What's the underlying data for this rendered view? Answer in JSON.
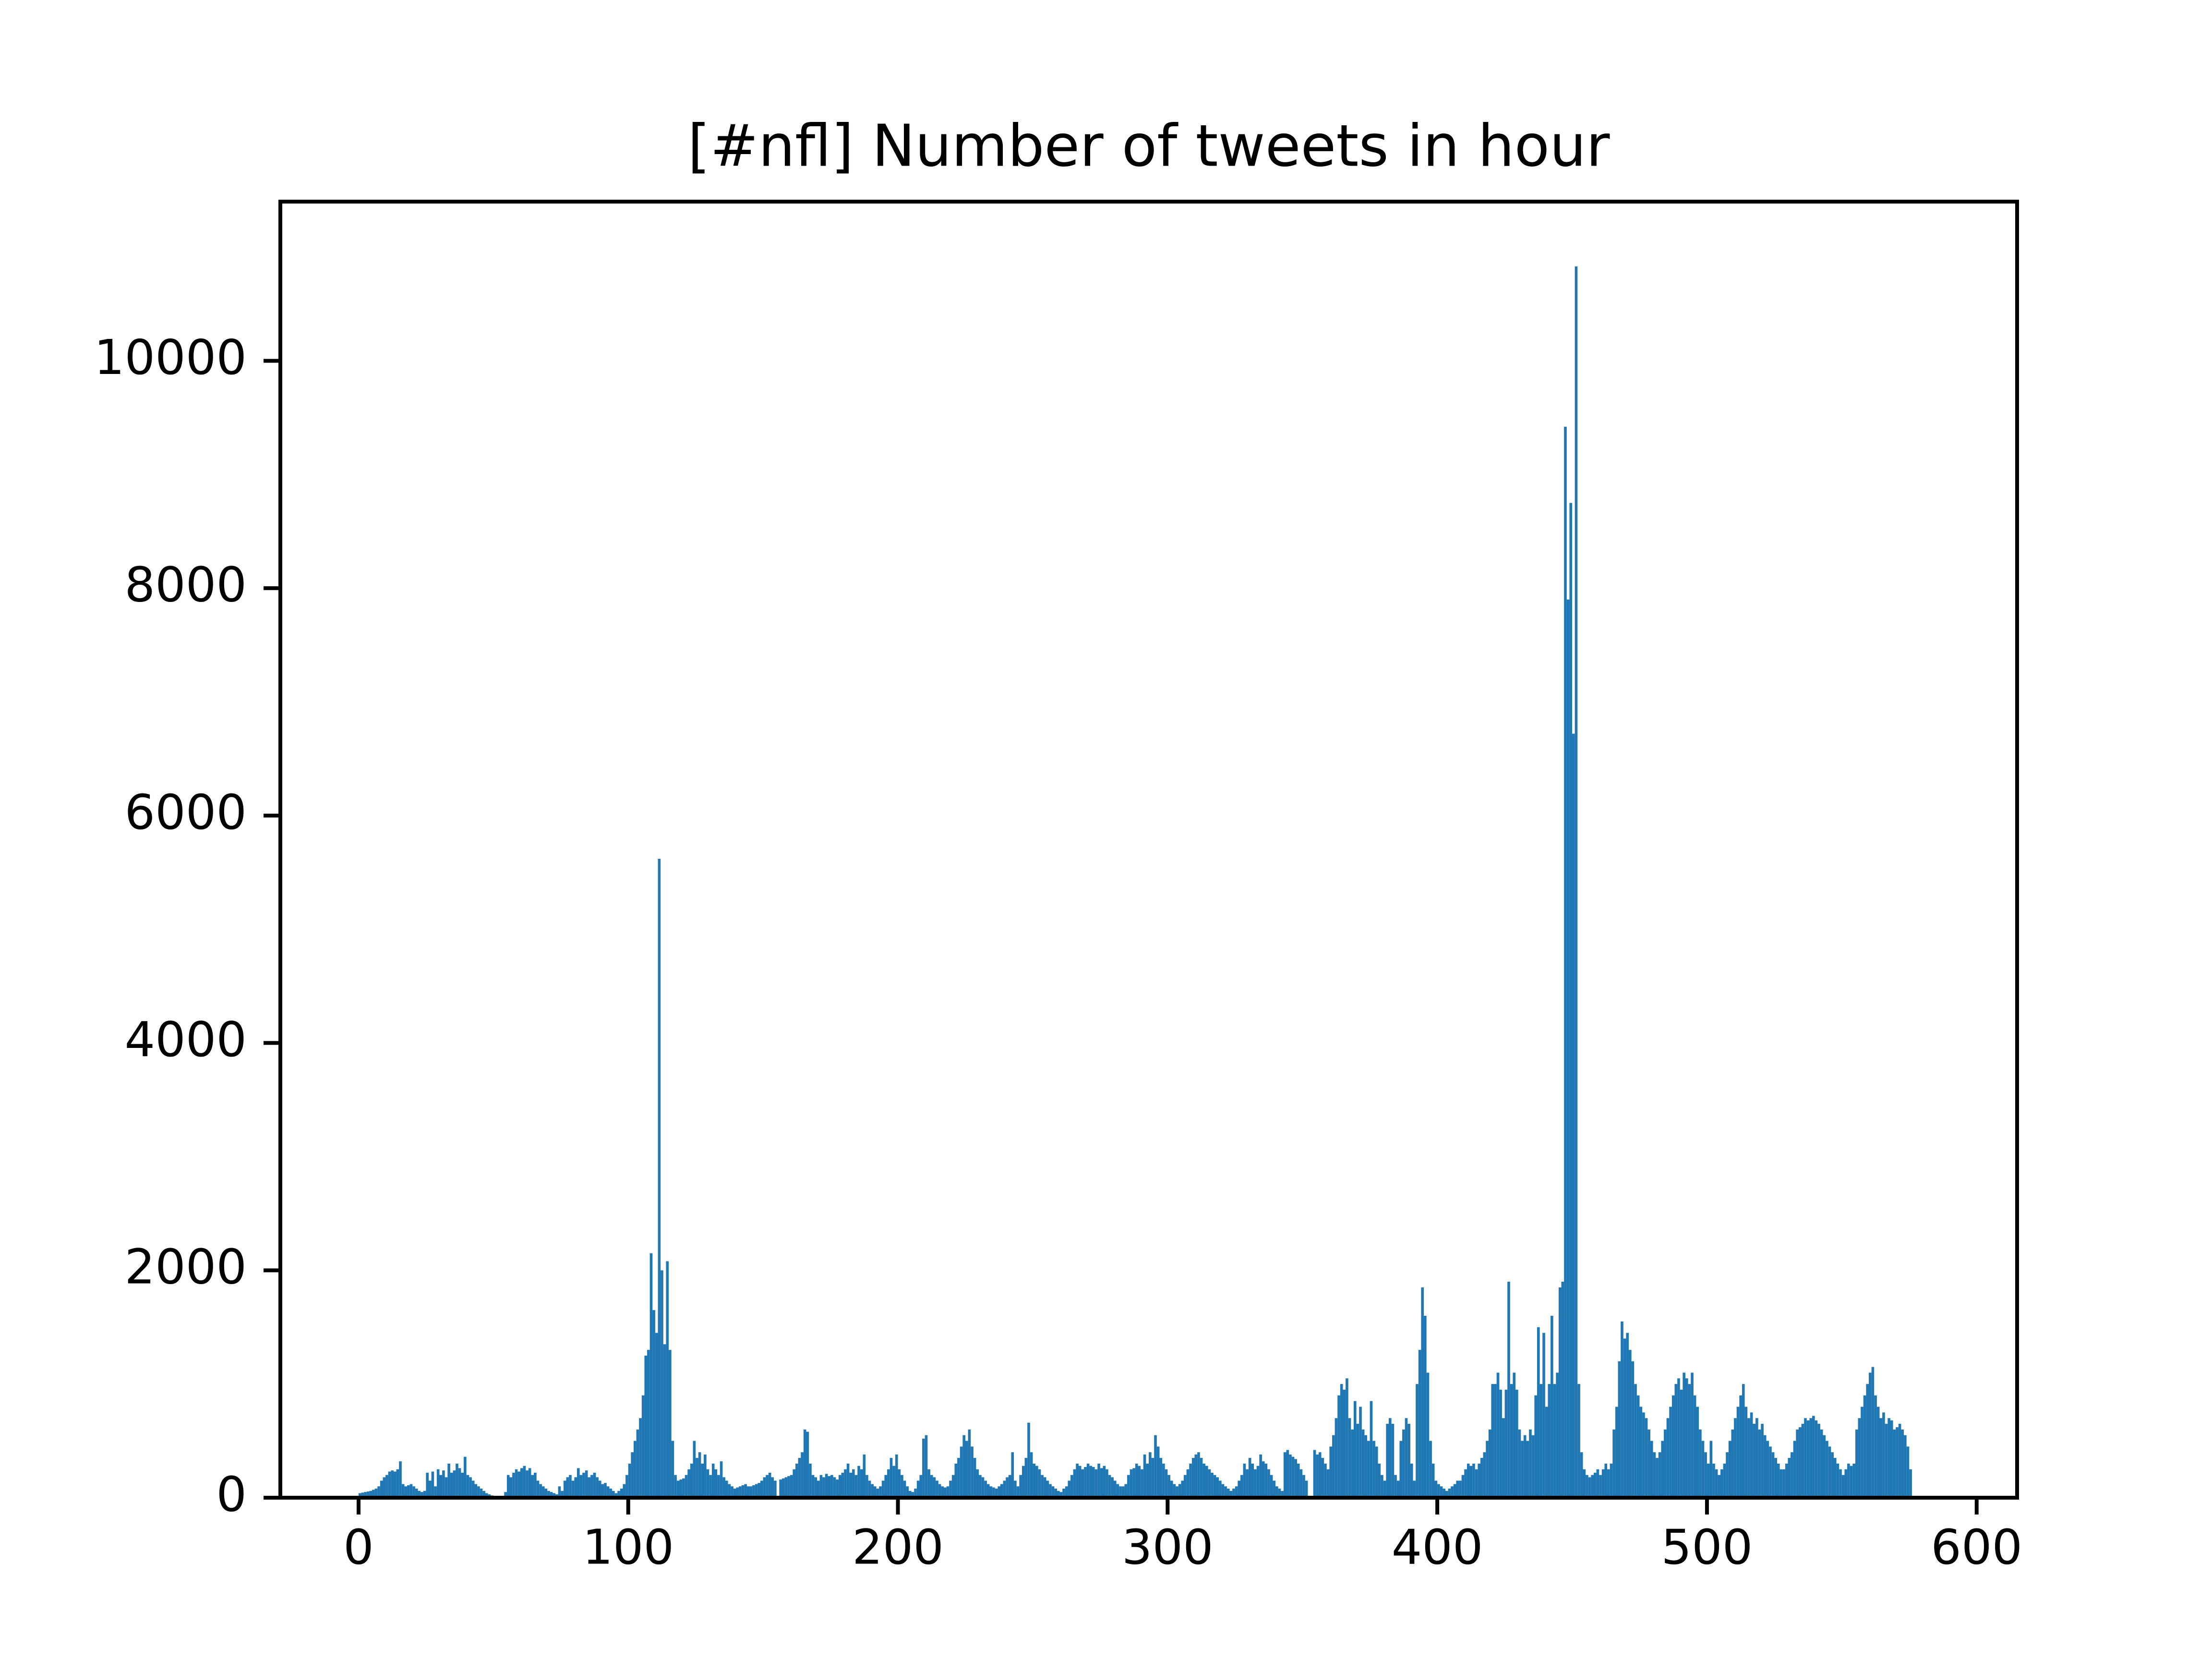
{
  "chart_data": {
    "type": "histogram",
    "title": "[#nfl] Number of tweets in hour",
    "color": "#1f77b4",
    "bins": [
      0,
      1,
      2,
      3,
      4,
      5,
      6,
      7,
      8,
      9,
      10,
      11,
      12,
      13,
      14,
      15,
      16,
      17,
      18,
      19,
      20,
      21,
      22,
      23,
      24,
      25,
      26,
      27,
      28,
      29,
      30,
      31,
      32,
      33,
      34,
      35,
      36,
      37,
      38,
      39,
      40,
      41,
      42,
      43,
      44,
      45,
      46,
      47,
      48,
      49,
      50,
      51,
      52,
      53,
      54,
      55,
      56,
      57,
      58,
      59,
      60,
      61,
      62,
      63,
      64,
      65,
      66,
      67,
      68,
      69,
      70,
      71,
      72,
      73,
      74,
      75,
      76,
      77,
      78,
      79,
      80,
      81,
      82,
      83,
      84,
      85,
      86,
      87,
      88,
      89,
      90,
      91,
      92,
      93,
      94,
      95,
      96,
      97,
      98,
      99,
      100,
      101,
      102,
      103,
      104,
      105,
      106,
      107,
      108,
      109,
      110,
      111,
      112,
      113,
      114,
      115,
      116,
      117,
      118,
      119,
      120,
      121,
      122,
      123,
      124,
      125,
      126,
      127,
      128,
      129,
      130,
      131,
      132,
      133,
      134,
      135,
      136,
      137,
      138,
      139,
      140,
      141,
      142,
      143,
      144,
      145,
      146,
      147,
      148,
      149,
      150,
      151,
      152,
      153,
      154,
      155,
      156,
      157,
      158,
      159,
      160,
      161,
      162,
      163,
      164,
      165,
      166,
      167,
      168,
      169,
      170,
      171,
      172,
      173,
      174,
      175,
      176,
      177,
      178,
      179,
      180,
      181,
      182,
      183,
      184,
      185,
      186,
      187,
      188,
      189,
      190,
      191,
      192,
      193,
      194,
      195,
      196,
      197,
      198,
      199,
      200,
      201,
      202,
      203,
      204,
      205,
      206,
      207,
      208,
      209,
      210,
      211,
      212,
      213,
      214,
      215,
      216,
      217,
      218,
      219,
      220,
      221,
      222,
      223,
      224,
      225,
      226,
      227,
      228,
      229,
      230,
      231,
      232,
      233,
      234,
      235,
      236,
      237,
      238,
      239,
      240,
      241,
      242,
      243,
      244,
      245,
      246,
      247,
      248,
      249,
      250,
      251,
      252,
      253,
      254,
      255,
      256,
      257,
      258,
      259,
      260,
      261,
      262,
      263,
      264,
      265,
      266,
      267,
      268,
      269,
      270,
      271,
      272,
      273,
      274,
      275,
      276,
      277,
      278,
      279,
      280,
      281,
      282,
      283,
      284,
      285,
      286,
      287,
      288,
      289,
      290,
      291,
      292,
      293,
      294,
      295,
      296,
      297,
      298,
      299,
      300,
      301,
      302,
      303,
      304,
      305,
      306,
      307,
      308,
      309,
      310,
      311,
      312,
      313,
      314,
      315,
      316,
      317,
      318,
      319,
      320,
      321,
      322,
      323,
      324,
      325,
      326,
      327,
      328,
      329,
      330,
      331,
      332,
      333,
      334,
      335,
      336,
      337,
      338,
      339,
      340,
      341,
      342,
      343,
      344,
      345,
      346,
      347,
      348,
      349,
      350,
      351,
      352,
      353,
      354,
      355,
      356,
      357,
      358,
      359,
      360,
      361,
      362,
      363,
      364,
      365,
      366,
      367,
      368,
      369,
      370,
      371,
      372,
      373,
      374,
      375,
      376,
      377,
      378,
      379,
      380,
      381,
      382,
      383,
      384,
      385,
      386,
      387,
      388,
      389,
      390,
      391,
      392,
      393,
      394,
      395,
      396,
      397,
      398,
      399,
      400,
      401,
      402,
      403,
      404,
      405,
      406,
      407,
      408,
      409,
      410,
      411,
      412,
      413,
      414,
      415,
      416,
      417,
      418,
      419,
      420,
      421,
      422,
      423,
      424,
      425,
      426,
      427,
      428,
      429,
      430,
      431,
      432,
      433,
      434,
      435,
      436,
      437,
      438,
      439,
      440,
      441,
      442,
      443,
      444,
      445,
      446,
      447,
      448,
      449,
      450,
      451,
      452,
      453,
      454,
      455,
      456,
      457,
      458,
      459,
      460,
      461,
      462,
      463,
      464,
      465,
      466,
      467,
      468,
      469,
      470,
      471,
      472,
      473,
      474,
      475,
      476,
      477,
      478,
      479,
      480,
      481,
      482,
      483,
      484,
      485,
      486,
      487,
      488,
      489,
      490,
      491,
      492,
      493,
      494,
      495,
      496,
      497,
      498,
      499,
      500,
      501,
      502,
      503,
      504,
      505,
      506,
      507,
      508,
      509,
      510,
      511,
      512,
      513,
      514,
      515,
      516,
      517,
      518,
      519,
      520,
      521,
      522,
      523,
      524,
      525,
      526,
      527,
      528,
      529,
      530,
      531,
      532,
      533,
      534,
      535,
      536,
      537,
      538,
      539,
      540,
      541,
      542,
      543,
      544,
      545,
      546,
      547,
      548,
      549,
      550,
      551,
      552,
      553,
      554,
      555,
      556,
      557,
      558,
      559,
      560,
      561,
      562,
      563,
      564,
      565,
      566,
      567,
      568,
      569,
      570,
      571,
      572,
      573,
      574,
      575,
      576
    ],
    "values": [
      40,
      45,
      50,
      55,
      60,
      70,
      80,
      100,
      150,
      180,
      200,
      230,
      240,
      230,
      250,
      320,
      120,
      100,
      110,
      120,
      100,
      80,
      60,
      50,
      60,
      220,
      150,
      230,
      100,
      250,
      200,
      240,
      180,
      300,
      220,
      240,
      300,
      260,
      220,
      360,
      200,
      180,
      150,
      120,
      100,
      80,
      60,
      40,
      30,
      20,
      0,
      0,
      0,
      10,
      50,
      200,
      180,
      220,
      250,
      230,
      260,
      280,
      240,
      260,
      200,
      220,
      150,
      120,
      100,
      80,
      60,
      50,
      40,
      30,
      100,
      60,
      150,
      180,
      200,
      150,
      180,
      260,
      200,
      220,
      240,
      180,
      200,
      220,
      180,
      150,
      120,
      130,
      100,
      80,
      60,
      40,
      60,
      80,
      120,
      200,
      300,
      400,
      500,
      600,
      700,
      900,
      1250,
      1300,
      2150,
      1650,
      1450,
      5620,
      2000,
      1350,
      2080,
      1300,
      500,
      200,
      150,
      160,
      170,
      200,
      250,
      300,
      500,
      350,
      400,
      300,
      380,
      250,
      200,
      300,
      250,
      200,
      320,
      180,
      150,
      120,
      100,
      80,
      90,
      100,
      110,
      120,
      100,
      100,
      110,
      120,
      130,
      150,
      180,
      200,
      220,
      180,
      150,
      0,
      160,
      170,
      180,
      190,
      200,
      250,
      300,
      350,
      400,
      600,
      580,
      300,
      200,
      180,
      150,
      200,
      180,
      210,
      190,
      200,
      180,
      160,
      200,
      220,
      250,
      300,
      220,
      250,
      200,
      280,
      250,
      380,
      200,
      150,
      120,
      100,
      80,
      100,
      150,
      200,
      250,
      350,
      280,
      380,
      250,
      200,
      150,
      100,
      60,
      50,
      80,
      150,
      200,
      520,
      550,
      250,
      200,
      180,
      150,
      120,
      100,
      90,
      100,
      150,
      200,
      300,
      350,
      450,
      550,
      500,
      600,
      450,
      350,
      250,
      200,
      180,
      150,
      120,
      100,
      90,
      80,
      100,
      120,
      150,
      180,
      200,
      400,
      150,
      100,
      200,
      280,
      350,
      660,
      400,
      300,
      280,
      250,
      200,
      180,
      150,
      120,
      100,
      80,
      60,
      50,
      80,
      100,
      150,
      200,
      250,
      300,
      280,
      250,
      270,
      300,
      280,
      270,
      250,
      300,
      260,
      280,
      250,
      200,
      180,
      150,
      120,
      100,
      100,
      120,
      200,
      250,
      260,
      300,
      280,
      250,
      380,
      300,
      400,
      350,
      550,
      450,
      350,
      300,
      250,
      200,
      150,
      120,
      100,
      120,
      150,
      200,
      250,
      300,
      350,
      380,
      400,
      350,
      300,
      280,
      250,
      220,
      200,
      180,
      150,
      120,
      100,
      80,
      60,
      80,
      100,
      150,
      200,
      300,
      250,
      350,
      300,
      250,
      280,
      380,
      320,
      300,
      250,
      200,
      150,
      100,
      80,
      60,
      400,
      420,
      380,
      360,
      340,
      300,
      250,
      200,
      150,
      0,
      0,
      420,
      380,
      400,
      350,
      300,
      250,
      450,
      550,
      700,
      900,
      1000,
      950,
      1050,
      700,
      600,
      850,
      650,
      800,
      600,
      550,
      500,
      850,
      500,
      450,
      300,
      200,
      150,
      650,
      700,
      650,
      200,
      150,
      500,
      600,
      700,
      650,
      300,
      150,
      1000,
      1300,
      1850,
      1600,
      1100,
      500,
      300,
      150,
      120,
      100,
      80,
      60,
      80,
      100,
      120,
      150,
      150,
      200,
      250,
      300,
      280,
      300,
      250,
      300,
      350,
      400,
      500,
      600,
      1000,
      1000,
      1100,
      950,
      700,
      950,
      1900,
      1000,
      1100,
      950,
      600,
      500,
      550,
      500,
      600,
      550,
      900,
      1500,
      1000,
      1450,
      800,
      1000,
      1600,
      1000,
      1100,
      1850,
      1900,
      9420,
      7900,
      8750,
      6720,
      10830,
      1000,
      400,
      250,
      200,
      180,
      200,
      220,
      250,
      200,
      250,
      300,
      250,
      300,
      600,
      800,
      1200,
      1550,
      1400,
      1450,
      1300,
      1200,
      1000,
      900,
      800,
      750,
      700,
      600,
      500,
      400,
      350,
      400,
      500,
      600,
      700,
      800,
      900,
      1000,
      1050,
      950,
      1100,
      1050,
      1000,
      1100,
      900,
      800,
      600,
      500,
      400,
      300,
      500,
      300,
      250,
      200,
      250,
      300,
      400,
      500,
      600,
      700,
      800,
      900,
      1000,
      800,
      700,
      750,
      650,
      700,
      600,
      650,
      550,
      500,
      450,
      400,
      350,
      300,
      250,
      250,
      300,
      350,
      400,
      500,
      600,
      620,
      650,
      700,
      680,
      700,
      720,
      680,
      650,
      600,
      550,
      500,
      450,
      400,
      350,
      300,
      250,
      200,
      250,
      300,
      280,
      300,
      600,
      700,
      800,
      900,
      1000,
      1100,
      1150,
      900,
      800,
      700,
      750,
      650,
      700,
      680,
      600,
      620,
      650,
      600,
      550,
      450,
      250
    ],
    "xlim": [
      -29,
      615
    ],
    "xticks": [
      0,
      100,
      200,
      300,
      400,
      500,
      600
    ],
    "ylim": [
      0,
      11400
    ],
    "yticks": [
      0,
      2000,
      4000,
      6000,
      8000,
      10000
    ]
  }
}
